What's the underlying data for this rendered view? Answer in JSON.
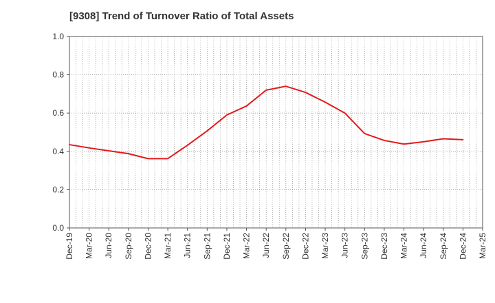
{
  "title": "[9308]  Trend of Turnover Ratio of Total Assets",
  "chart_data": {
    "type": "line",
    "title": "[9308]  Trend of Turnover Ratio of Total Assets",
    "xlabel": "",
    "ylabel": "",
    "ylim": [
      0.0,
      1.0
    ],
    "y_ticks": [
      "0.0",
      "0.2",
      "0.4",
      "0.6",
      "0.8",
      "1.0"
    ],
    "x_ticks": [
      "Dec-19",
      "Mar-20",
      "Jun-20",
      "Sep-20",
      "Dec-20",
      "Mar-21",
      "Jun-21",
      "Sep-21",
      "Dec-21",
      "Mar-22",
      "Jun-22",
      "Sep-22",
      "Dec-22",
      "Mar-23",
      "Jun-23",
      "Sep-23",
      "Dec-23",
      "Mar-24",
      "Jun-24",
      "Sep-24",
      "Dec-24",
      "Mar-25"
    ],
    "grid": true,
    "series": [
      {
        "color": "#e31a1c",
        "x": [
          "Dec-19",
          "Mar-20",
          "Jun-20",
          "Sep-20",
          "Dec-20",
          "Mar-21",
          "Jun-21",
          "Sep-21",
          "Dec-21",
          "Mar-22",
          "Jun-22",
          "Sep-22",
          "Dec-22",
          "Mar-23",
          "Jun-23",
          "Sep-23",
          "Dec-23",
          "Mar-24",
          "Jun-24",
          "Sep-24",
          "Dec-24"
        ],
        "values": [
          0.435,
          0.418,
          0.403,
          0.388,
          0.362,
          0.362,
          0.432,
          0.507,
          0.59,
          0.637,
          0.72,
          0.74,
          0.708,
          0.657,
          0.6,
          0.493,
          0.457,
          0.438,
          0.45,
          0.466,
          0.461
        ]
      }
    ]
  }
}
